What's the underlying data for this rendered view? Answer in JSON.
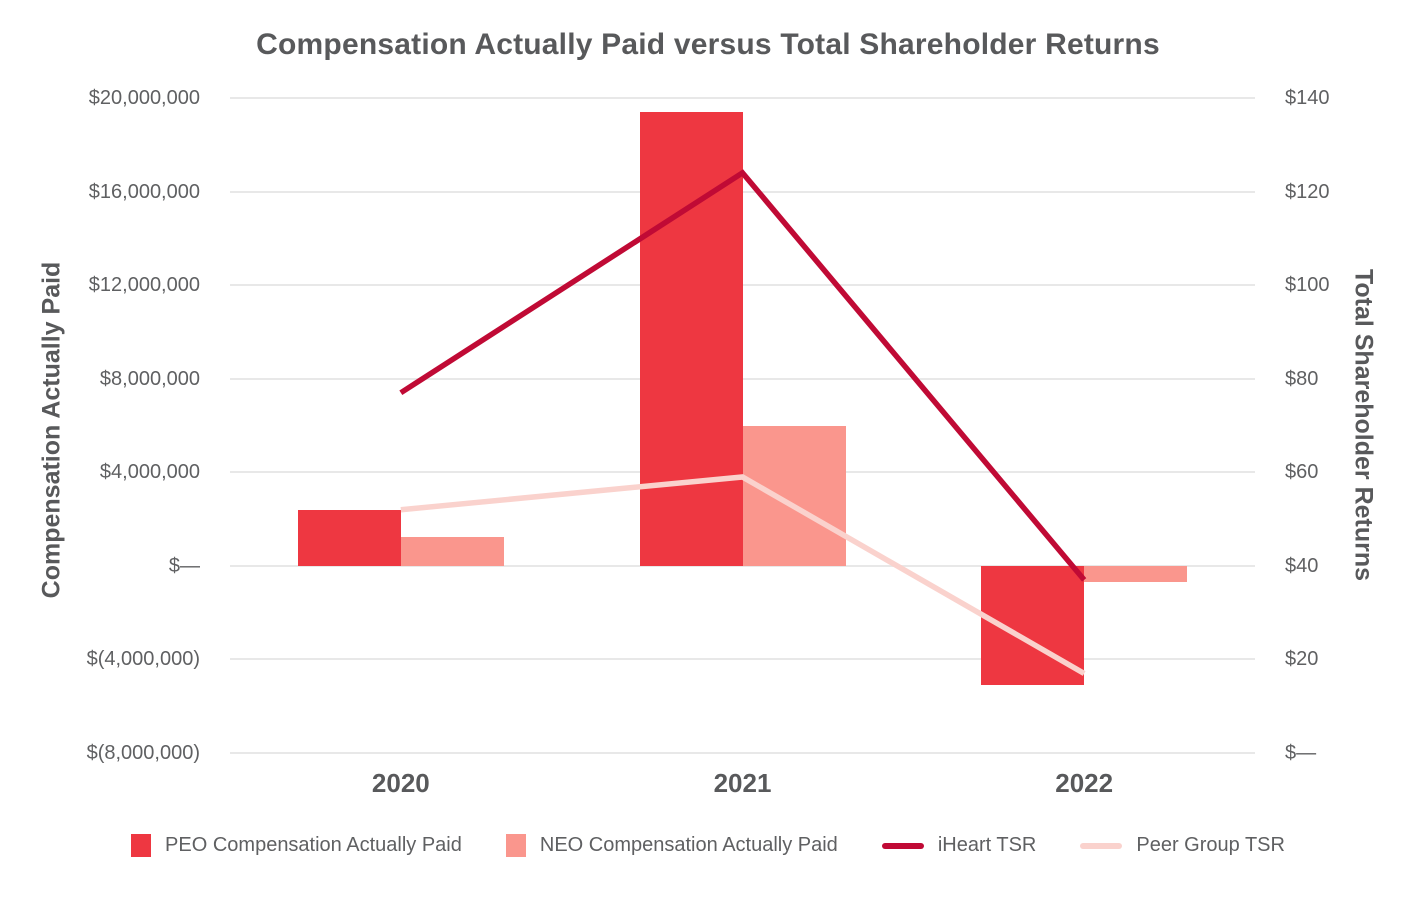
{
  "title": "Compensation Actually Paid versus Total Shareholder Returns",
  "colors": {
    "peo_bar": "#EE3741",
    "neo_bar": "#FA968D",
    "iheart_line": "#C00A35",
    "peer_line": "#FAD2CD",
    "gridline": "#E8E8E8",
    "text": "#58595B"
  },
  "chart_data": {
    "type": "combo-bar-line",
    "title": "Compensation Actually Paid versus Total Shareholder Returns",
    "categories": [
      "2020",
      "2021",
      "2022"
    ],
    "bar_series": [
      {
        "name": "PEO Compensation Actually Paid",
        "color": "#EE3741",
        "axis": "left",
        "values": [
          2400000,
          19400000,
          -5100000
        ]
      },
      {
        "name": "NEO Compensation Actually Paid",
        "color": "#FA968D",
        "axis": "left",
        "values": [
          1250000,
          6000000,
          -700000
        ]
      }
    ],
    "line_series": [
      {
        "name": "iHeart TSR",
        "color": "#C00A35",
        "axis": "right",
        "stroke_width": 5.5,
        "values": [
          77,
          124,
          37
        ]
      },
      {
        "name": "Peer Group TSR",
        "color": "#FAD2CD",
        "axis": "right",
        "stroke_width": 5.5,
        "values": [
          52,
          59,
          17
        ]
      }
    ],
    "left_axis": {
      "title": "Compensation Actually Paid",
      "min": -8000000,
      "max": 20000000,
      "tick_step": 4000000,
      "tick_labels_top_to_bottom": [
        "$20,000,000",
        "$16,000,000",
        "$12,000,000",
        "$8,000,000",
        "$4,000,000",
        "$—",
        "$(4,000,000)",
        "$(8,000,000)"
      ]
    },
    "right_axis": {
      "title": "Total Shareholder Returns",
      "min": 0,
      "max": 140,
      "tick_step": 20,
      "tick_labels_top_to_bottom": [
        "$140",
        "$120",
        "$100",
        "$80",
        "$60",
        "$40",
        "$20",
        "$—"
      ]
    },
    "grid": "horizontal",
    "legend_position": "bottom",
    "legend_items": [
      {
        "label": "PEO Compensation Actually Paid",
        "swatch": "square",
        "color": "#EE3741"
      },
      {
        "label": "NEO Compensation Actually Paid",
        "swatch": "square",
        "color": "#FA968D"
      },
      {
        "label": "iHeart TSR",
        "swatch": "line",
        "color": "#C00A35"
      },
      {
        "label": "Peer Group TSR",
        "swatch": "line",
        "color": "#FAD2CD"
      }
    ]
  }
}
